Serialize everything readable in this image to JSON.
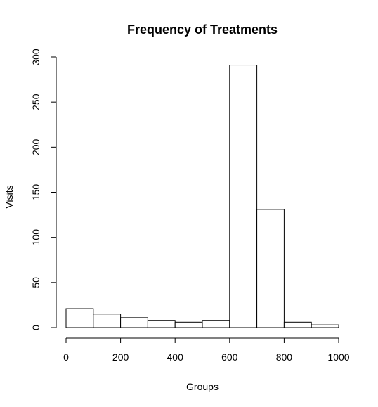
{
  "chart_data": {
    "type": "bar",
    "title": "Frequency of Treatments",
    "xlabel": "Groups",
    "ylabel": "Visits",
    "bins": [
      {
        "start": 0,
        "end": 100,
        "value": 21
      },
      {
        "start": 100,
        "end": 200,
        "value": 15
      },
      {
        "start": 200,
        "end": 300,
        "value": 11
      },
      {
        "start": 300,
        "end": 400,
        "value": 8
      },
      {
        "start": 400,
        "end": 500,
        "value": 6
      },
      {
        "start": 500,
        "end": 600,
        "value": 8
      },
      {
        "start": 600,
        "end": 700,
        "value": 291
      },
      {
        "start": 700,
        "end": 800,
        "value": 131
      },
      {
        "start": 800,
        "end": 900,
        "value": 6
      },
      {
        "start": 900,
        "end": 1000,
        "value": 3
      }
    ],
    "xlim": [
      0,
      1000
    ],
    "ylim": [
      0,
      300
    ],
    "x_ticks": [
      0,
      200,
      400,
      600,
      800,
      1000
    ],
    "y_ticks": [
      0,
      50,
      100,
      150,
      200,
      250,
      300
    ],
    "grid": false
  }
}
